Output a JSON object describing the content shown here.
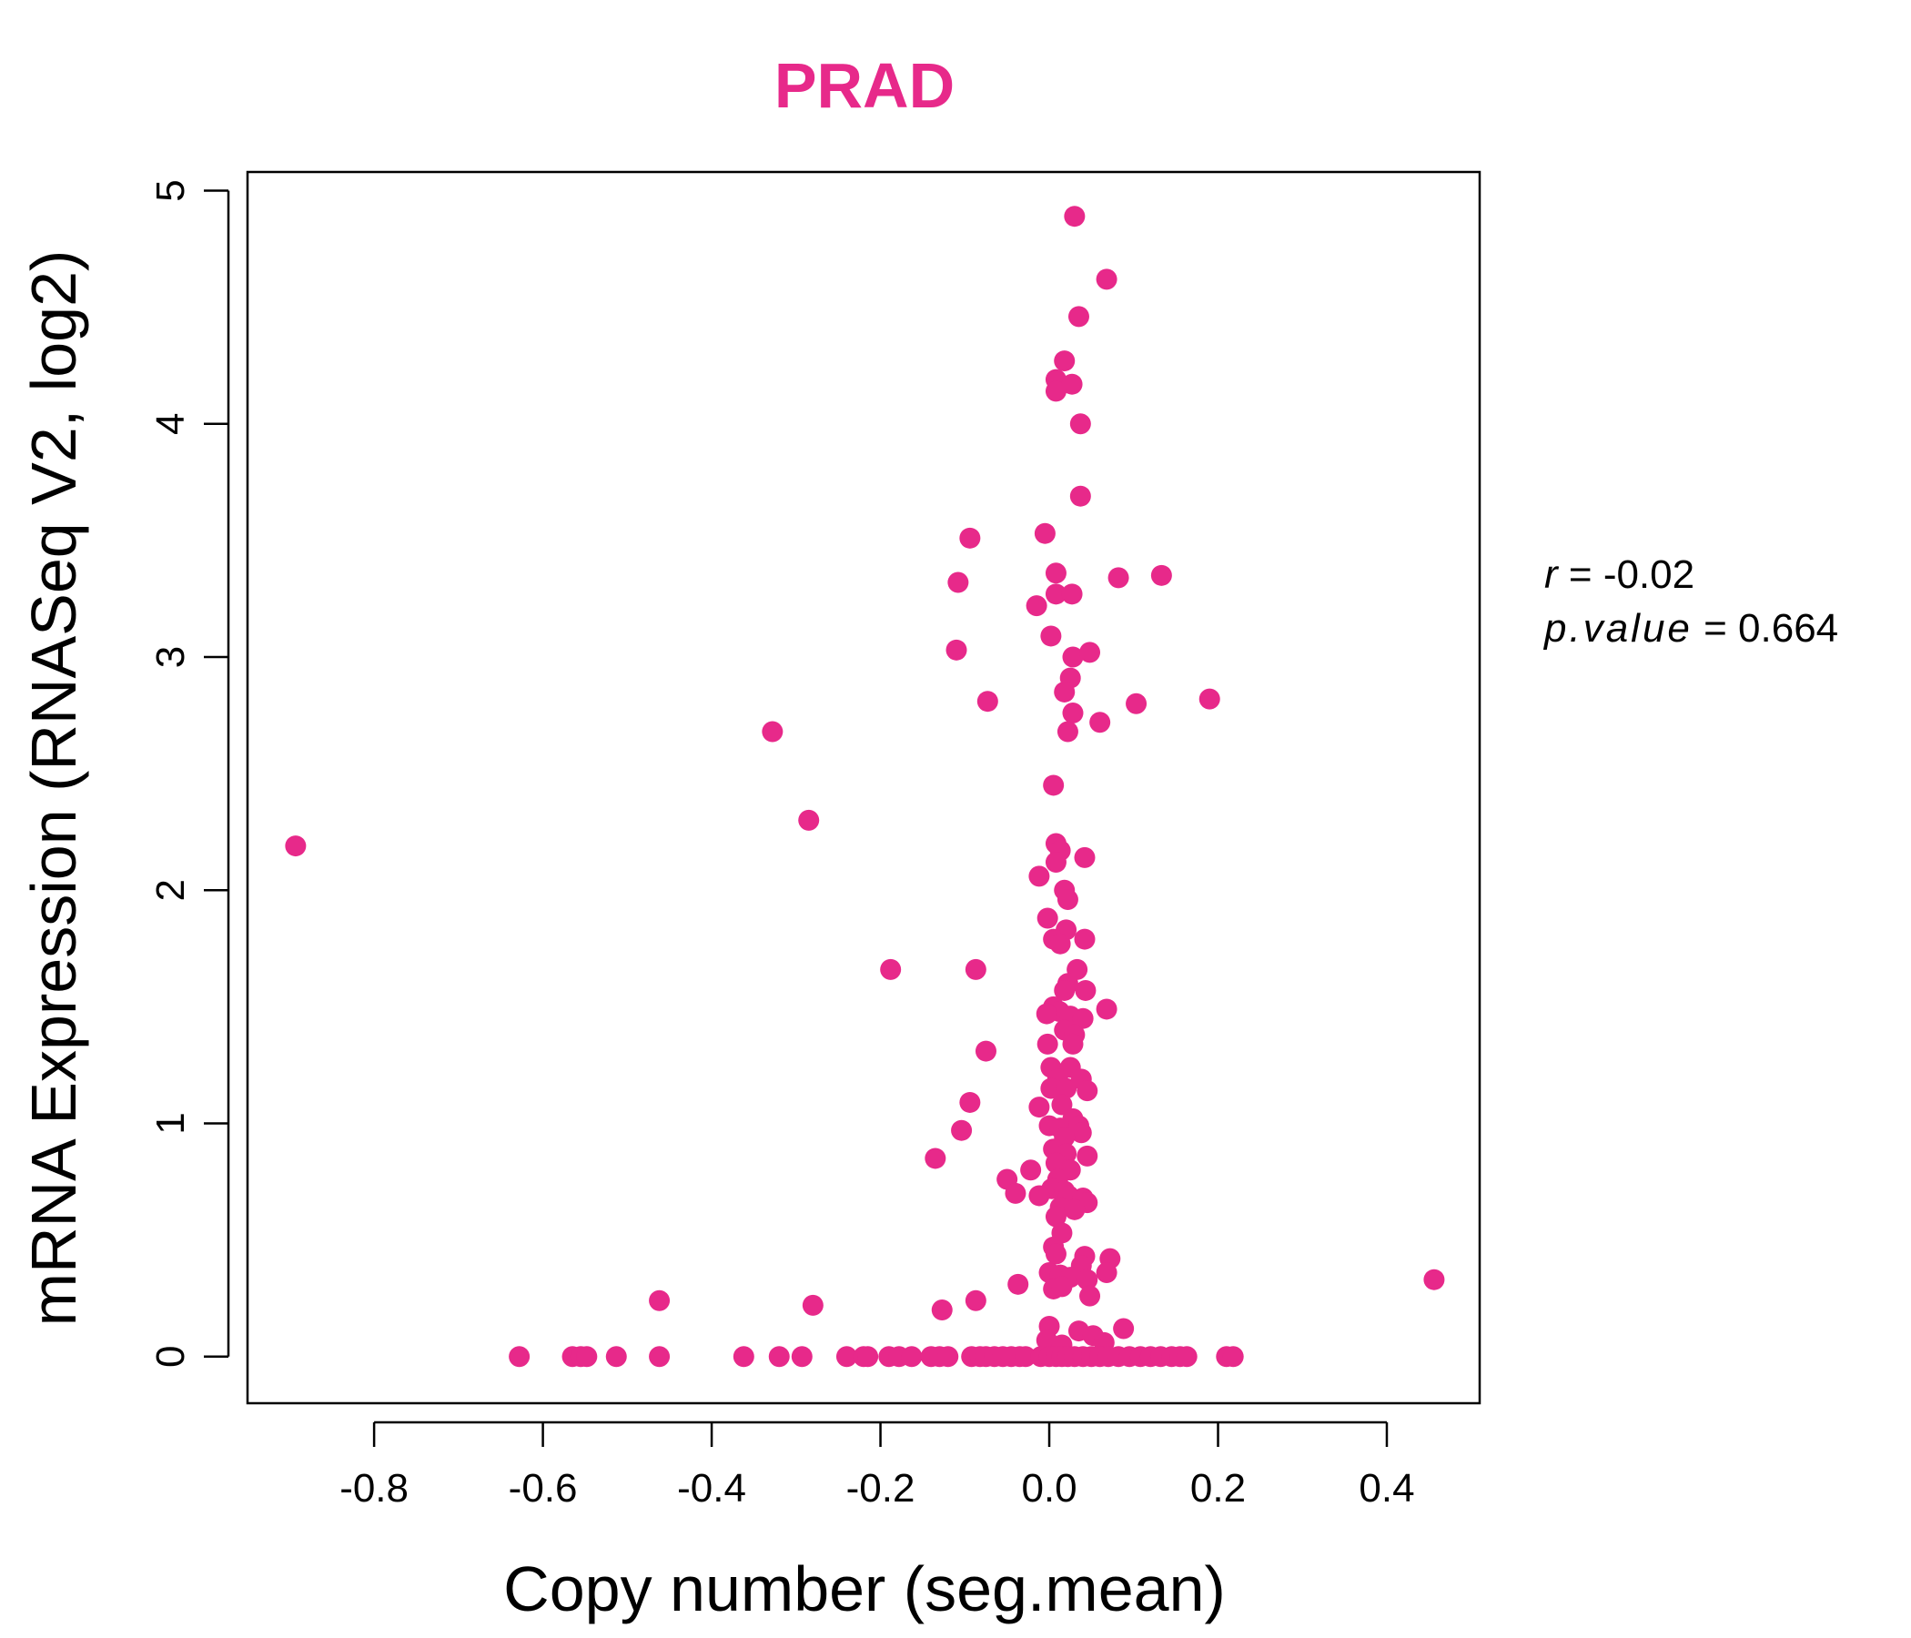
{
  "chart_data": {
    "type": "scatter",
    "title": "PRAD",
    "xlabel": "Copy number (seg.mean)",
    "ylabel": "mRNA Expression (RNASeq V2, log2)",
    "xlim": [
      -0.95,
      0.51
    ],
    "ylim": [
      -0.2,
      5.08
    ],
    "xticks": [
      -0.8,
      -0.6,
      -0.4,
      -0.2,
      0.0,
      0.2,
      0.4
    ],
    "xtick_labels": [
      "-0.8",
      "-0.6",
      "-0.4",
      "-0.2",
      "0.0",
      "0.2",
      "0.4"
    ],
    "yticks": [
      0,
      1,
      2,
      3,
      4,
      5
    ],
    "ytick_labels": [
      "0",
      "1",
      "2",
      "3",
      "4",
      "5"
    ],
    "grid": false,
    "legend": "none",
    "point_color": "#E7298A",
    "stats": {
      "r_label": "r",
      "r_value": "-0.02",
      "p_label": "p.value",
      "p_value": "0.664"
    },
    "series": [
      {
        "points": [
          [
            0.03,
            4.89
          ],
          [
            0.068,
            4.62
          ],
          [
            0.035,
            4.46
          ],
          [
            0.018,
            4.27
          ],
          [
            0.008,
            4.19
          ],
          [
            0.027,
            4.17
          ],
          [
            0.008,
            4.14
          ],
          [
            0.037,
            4.0
          ],
          [
            0.037,
            3.69
          ],
          [
            -0.005,
            3.53
          ],
          [
            -0.094,
            3.51
          ],
          [
            -0.108,
            3.32
          ],
          [
            0.008,
            3.36
          ],
          [
            0.082,
            3.34
          ],
          [
            0.133,
            3.35
          ],
          [
            0.008,
            3.27
          ],
          [
            0.027,
            3.27
          ],
          [
            -0.015,
            3.22
          ],
          [
            0.002,
            3.09
          ],
          [
            -0.11,
            3.03
          ],
          [
            0.028,
            3.0
          ],
          [
            0.048,
            3.02
          ],
          [
            0.025,
            2.91
          ],
          [
            0.018,
            2.85
          ],
          [
            -0.073,
            2.81
          ],
          [
            0.103,
            2.8
          ],
          [
            0.19,
            2.82
          ],
          [
            0.028,
            2.76
          ],
          [
            0.06,
            2.72
          ],
          [
            0.022,
            2.68
          ],
          [
            -0.328,
            2.68
          ],
          [
            0.005,
            2.45
          ],
          [
            -0.285,
            2.3
          ],
          [
            -0.893,
            2.19
          ],
          [
            0.008,
            2.2
          ],
          [
            0.013,
            2.17
          ],
          [
            0.042,
            2.14
          ],
          [
            0.008,
            2.12
          ],
          [
            -0.012,
            2.06
          ],
          [
            0.018,
            2.0
          ],
          [
            0.022,
            1.96
          ],
          [
            -0.002,
            1.88
          ],
          [
            0.02,
            1.83
          ],
          [
            0.005,
            1.79
          ],
          [
            0.013,
            1.77
          ],
          [
            0.042,
            1.79
          ],
          [
            -0.188,
            1.66
          ],
          [
            -0.087,
            1.66
          ],
          [
            0.033,
            1.66
          ],
          [
            0.022,
            1.6
          ],
          [
            0.018,
            1.57
          ],
          [
            0.043,
            1.57
          ],
          [
            0.005,
            1.5
          ],
          [
            0.012,
            1.48
          ],
          [
            -0.003,
            1.47
          ],
          [
            0.025,
            1.46
          ],
          [
            0.04,
            1.45
          ],
          [
            0.068,
            1.49
          ],
          [
            0.018,
            1.4
          ],
          [
            0.03,
            1.38
          ],
          [
            -0.002,
            1.34
          ],
          [
            0.028,
            1.34
          ],
          [
            -0.075,
            1.31
          ],
          [
            0.002,
            1.24
          ],
          [
            0.025,
            1.24
          ],
          [
            0.01,
            1.19
          ],
          [
            0.038,
            1.19
          ],
          [
            0.002,
            1.15
          ],
          [
            0.02,
            1.15
          ],
          [
            0.045,
            1.14
          ],
          [
            -0.094,
            1.09
          ],
          [
            -0.012,
            1.07
          ],
          [
            0.015,
            1.08
          ],
          [
            0.028,
            1.02
          ],
          [
            0.0,
            0.99
          ],
          [
            0.013,
            0.98
          ],
          [
            0.035,
            0.99
          ],
          [
            0.038,
            0.96
          ],
          [
            -0.104,
            0.97
          ],
          [
            0.018,
            0.94
          ],
          [
            0.005,
            0.89
          ],
          [
            0.02,
            0.87
          ],
          [
            0.045,
            0.86
          ],
          [
            -0.135,
            0.85
          ],
          [
            0.008,
            0.83
          ],
          [
            0.025,
            0.8
          ],
          [
            -0.022,
            0.8
          ],
          [
            0.01,
            0.76
          ],
          [
            -0.05,
            0.76
          ],
          [
            0.003,
            0.72
          ],
          [
            0.018,
            0.71
          ],
          [
            0.023,
            0.69
          ],
          [
            -0.04,
            0.7
          ],
          [
            -0.012,
            0.69
          ],
          [
            0.04,
            0.68
          ],
          [
            0.045,
            0.66
          ],
          [
            0.013,
            0.64
          ],
          [
            0.03,
            0.63
          ],
          [
            0.008,
            0.6
          ],
          [
            0.015,
            0.53
          ],
          [
            0.005,
            0.47
          ],
          [
            0.008,
            0.44
          ],
          [
            0.042,
            0.43
          ],
          [
            0.072,
            0.42
          ],
          [
            0.038,
            0.39
          ],
          [
            0.0,
            0.36
          ],
          [
            0.013,
            0.35
          ],
          [
            0.025,
            0.34
          ],
          [
            0.068,
            0.36
          ],
          [
            0.045,
            0.33
          ],
          [
            0.005,
            0.29
          ],
          [
            0.015,
            0.3
          ],
          [
            0.048,
            0.26
          ],
          [
            -0.037,
            0.31
          ],
          [
            0.456,
            0.33
          ],
          [
            -0.462,
            0.24
          ],
          [
            -0.28,
            0.22
          ],
          [
            -0.087,
            0.24
          ],
          [
            -0.127,
            0.2
          ],
          [
            0.088,
            0.12
          ],
          [
            0.0,
            0.13
          ],
          [
            0.035,
            0.11
          ],
          [
            0.052,
            0.09
          ],
          [
            -0.003,
            0.07
          ],
          [
            0.065,
            0.06
          ],
          [
            0.015,
            0.05
          ],
          [
            -0.628,
            0.0
          ],
          [
            -0.565,
            0.0
          ],
          [
            -0.555,
            0.0
          ],
          [
            -0.548,
            0.0
          ],
          [
            -0.513,
            0.0
          ],
          [
            -0.462,
            0.0
          ],
          [
            -0.362,
            0.0
          ],
          [
            -0.32,
            0.0
          ],
          [
            -0.293,
            0.0
          ],
          [
            -0.24,
            0.0
          ],
          [
            -0.22,
            0.0
          ],
          [
            -0.215,
            0.0
          ],
          [
            -0.19,
            0.0
          ],
          [
            -0.178,
            0.0
          ],
          [
            -0.163,
            0.0
          ],
          [
            -0.14,
            0.0
          ],
          [
            -0.13,
            0.0
          ],
          [
            -0.12,
            0.0
          ],
          [
            -0.092,
            0.0
          ],
          [
            -0.082,
            0.0
          ],
          [
            -0.075,
            0.0
          ],
          [
            -0.065,
            0.0
          ],
          [
            -0.055,
            0.0
          ],
          [
            -0.045,
            0.0
          ],
          [
            -0.035,
            0.0
          ],
          [
            -0.028,
            0.0
          ],
          [
            -0.01,
            0.0
          ],
          [
            0.0,
            0.0
          ],
          [
            0.008,
            0.0
          ],
          [
            0.015,
            0.0
          ],
          [
            0.022,
            0.0
          ],
          [
            0.03,
            0.0
          ],
          [
            0.04,
            0.0
          ],
          [
            0.05,
            0.0
          ],
          [
            0.06,
            0.0
          ],
          [
            0.07,
            0.0
          ],
          [
            0.082,
            0.0
          ],
          [
            0.095,
            0.0
          ],
          [
            0.108,
            0.0
          ],
          [
            0.12,
            0.0
          ],
          [
            0.132,
            0.0
          ],
          [
            0.145,
            0.0
          ],
          [
            0.155,
            0.0
          ],
          [
            0.163,
            0.0
          ],
          [
            0.21,
            0.0
          ],
          [
            0.218,
            0.0
          ]
        ]
      }
    ]
  }
}
